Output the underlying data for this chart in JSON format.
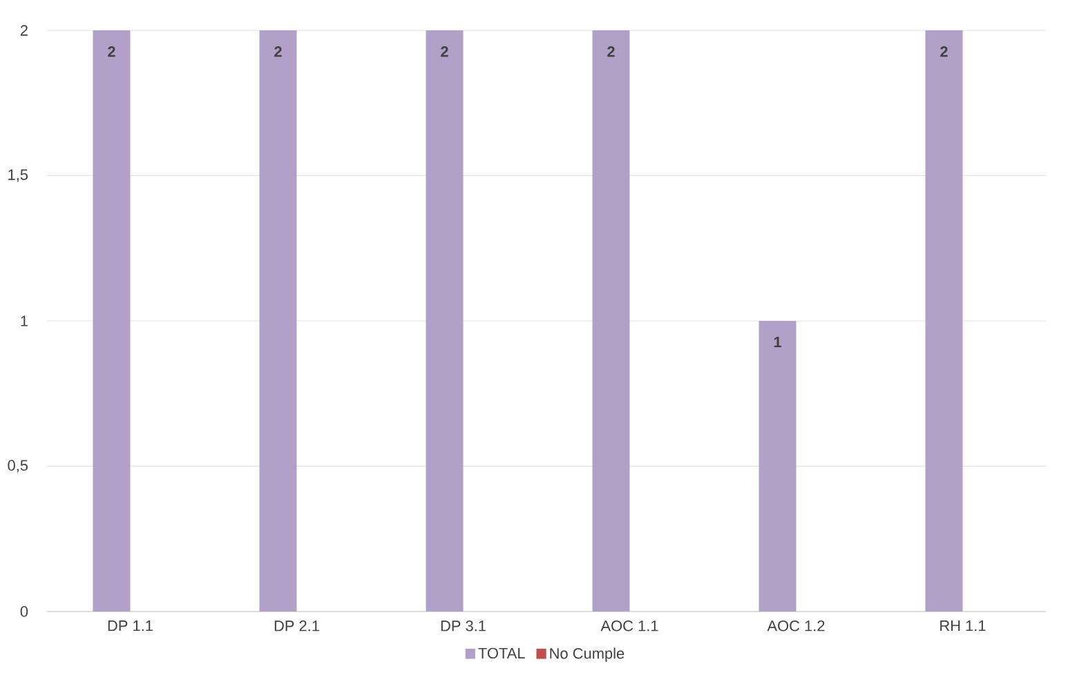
{
  "chart_data": {
    "type": "bar",
    "categories": [
      "DP 1.1",
      "DP 2.1",
      "DP 3.1",
      "AOC 1.1",
      "AOC 1.2",
      "RH 1.1"
    ],
    "series": [
      {
        "name": "TOTAL",
        "color": "#b1a0c7",
        "values": [
          2,
          2,
          2,
          2,
          1,
          2
        ]
      },
      {
        "name": "No Cumple",
        "color": "#c0504d",
        "values": [
          null,
          null,
          null,
          null,
          null,
          null
        ]
      }
    ],
    "ylim": [
      0,
      2
    ],
    "yticks": [
      0,
      {
        "value": 0.5,
        "label": "0,5"
      },
      1,
      {
        "value": 1.5,
        "label": "1,5"
      },
      2
    ],
    "grid": "y",
    "legend": "bottom",
    "data_labels": true
  }
}
